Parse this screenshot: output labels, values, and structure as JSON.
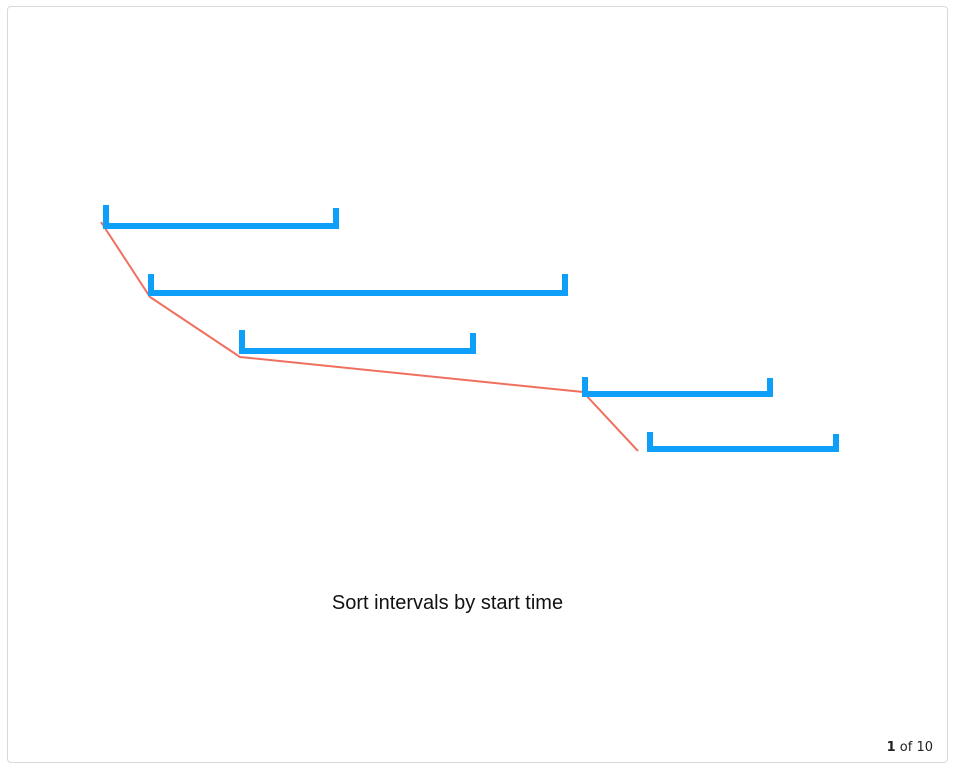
{
  "slide": {
    "caption": "Sort intervals by start time",
    "pager": {
      "current": "1",
      "separator": "of",
      "total": "10"
    }
  },
  "colors": {
    "interval": "#0ea0f8",
    "connector": "#f07060",
    "frame_border": "#d9d9d9"
  }
}
